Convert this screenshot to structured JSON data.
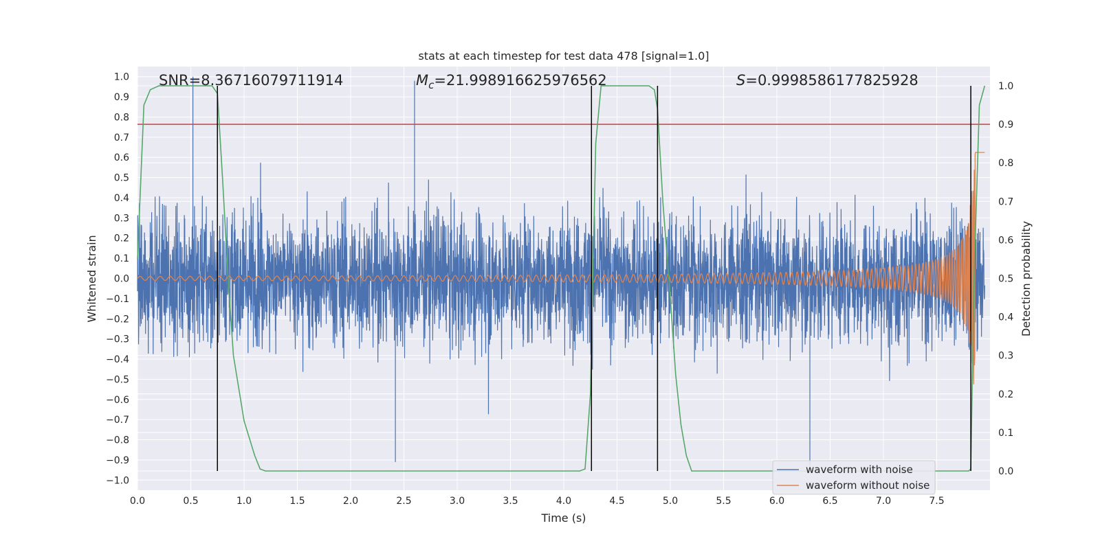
{
  "chart_data": {
    "type": "line",
    "title": "stats at each timestep for test data 478 [signal=1.0]",
    "xlabel": "Time (s)",
    "ylabel": "Whitened strain",
    "y2label": "Detection probability",
    "xlim": [
      0.0,
      8.0
    ],
    "ylim": [
      -1.05,
      1.05
    ],
    "y2lim": [
      -0.05,
      1.05
    ],
    "x_ticks": [
      "0.0",
      "0.5",
      "1.0",
      "1.5",
      "2.0",
      "2.5",
      "3.0",
      "3.5",
      "4.0",
      "4.5",
      "5.0",
      "5.5",
      "6.0",
      "6.5",
      "7.0",
      "7.5"
    ],
    "y_ticks": [
      "1.0",
      "0.9",
      "0.8",
      "0.7",
      "0.6",
      "0.5",
      "0.4",
      "0.3",
      "0.2",
      "0.1",
      "0.0",
      "−0.1",
      "−0.2",
      "−0.3",
      "−0.4",
      "−0.5",
      "−0.6",
      "−0.7",
      "−0.8",
      "−0.9",
      "−1.0"
    ],
    "y2_ticks": [
      "1.0",
      "0.9",
      "0.8",
      "0.7",
      "0.6",
      "0.5",
      "0.4",
      "0.3",
      "0.2",
      "0.1",
      "0.0"
    ],
    "grid": true,
    "legend_placement": "lower-right",
    "annotations": {
      "snr": "SNR=8.36716079711914",
      "mc_symbol": "M",
      "mc_sub": "c",
      "mc_value": "=21.998916625976562",
      "s_symbol": "S",
      "s_value": "=0.9998586177825928"
    },
    "threshold": 0.9,
    "vlines": [
      0.75,
      4.26,
      4.88,
      7.82
    ],
    "series": [
      {
        "name": "waveform with noise",
        "color": "#4c72b0",
        "axis": "left",
        "style": "noise",
        "amplitude_envelope": 0.45,
        "peak_points": [
          [
            0.52,
            1.0
          ],
          [
            2.6,
            0.98
          ],
          [
            2.42,
            -0.91
          ],
          [
            6.31,
            -0.93
          ]
        ]
      },
      {
        "name": "waveform without noise",
        "color": "#dd8452",
        "axis": "left",
        "style": "chirp",
        "start_amplitude": 0.01,
        "end_amplitude": 0.65,
        "merger_time": 7.88
      },
      {
        "name": "",
        "color": "#55a868",
        "axis": "right",
        "legend": false,
        "x": [
          0.0,
          0.06,
          0.12,
          0.2,
          0.7,
          0.75,
          0.8,
          0.85,
          0.9,
          1.0,
          1.1,
          1.15,
          1.2,
          4.15,
          4.2,
          4.25,
          4.3,
          4.35,
          4.8,
          4.85,
          4.88,
          4.93,
          5.0,
          5.05,
          5.1,
          5.15,
          5.2,
          7.8,
          7.82,
          7.85,
          7.9,
          7.95
        ],
        "y": [
          0.55,
          0.95,
          0.99,
          1.0,
          1.0,
          0.98,
          0.75,
          0.5,
          0.3,
          0.13,
          0.04,
          0.005,
          0.0,
          0.0,
          0.005,
          0.2,
          0.85,
          1.0,
          1.0,
          0.99,
          0.94,
          0.7,
          0.45,
          0.25,
          0.12,
          0.04,
          0.0,
          0.0,
          0.005,
          0.5,
          0.95,
          1.0
        ]
      },
      {
        "name": "",
        "color": "#c44e52",
        "axis": "right",
        "legend": false,
        "x": [
          0.0,
          8.0
        ],
        "y": [
          0.9,
          0.9
        ]
      }
    ],
    "legend": {
      "with_noise": "waveform with noise",
      "without_noise": "waveform without noise"
    }
  }
}
